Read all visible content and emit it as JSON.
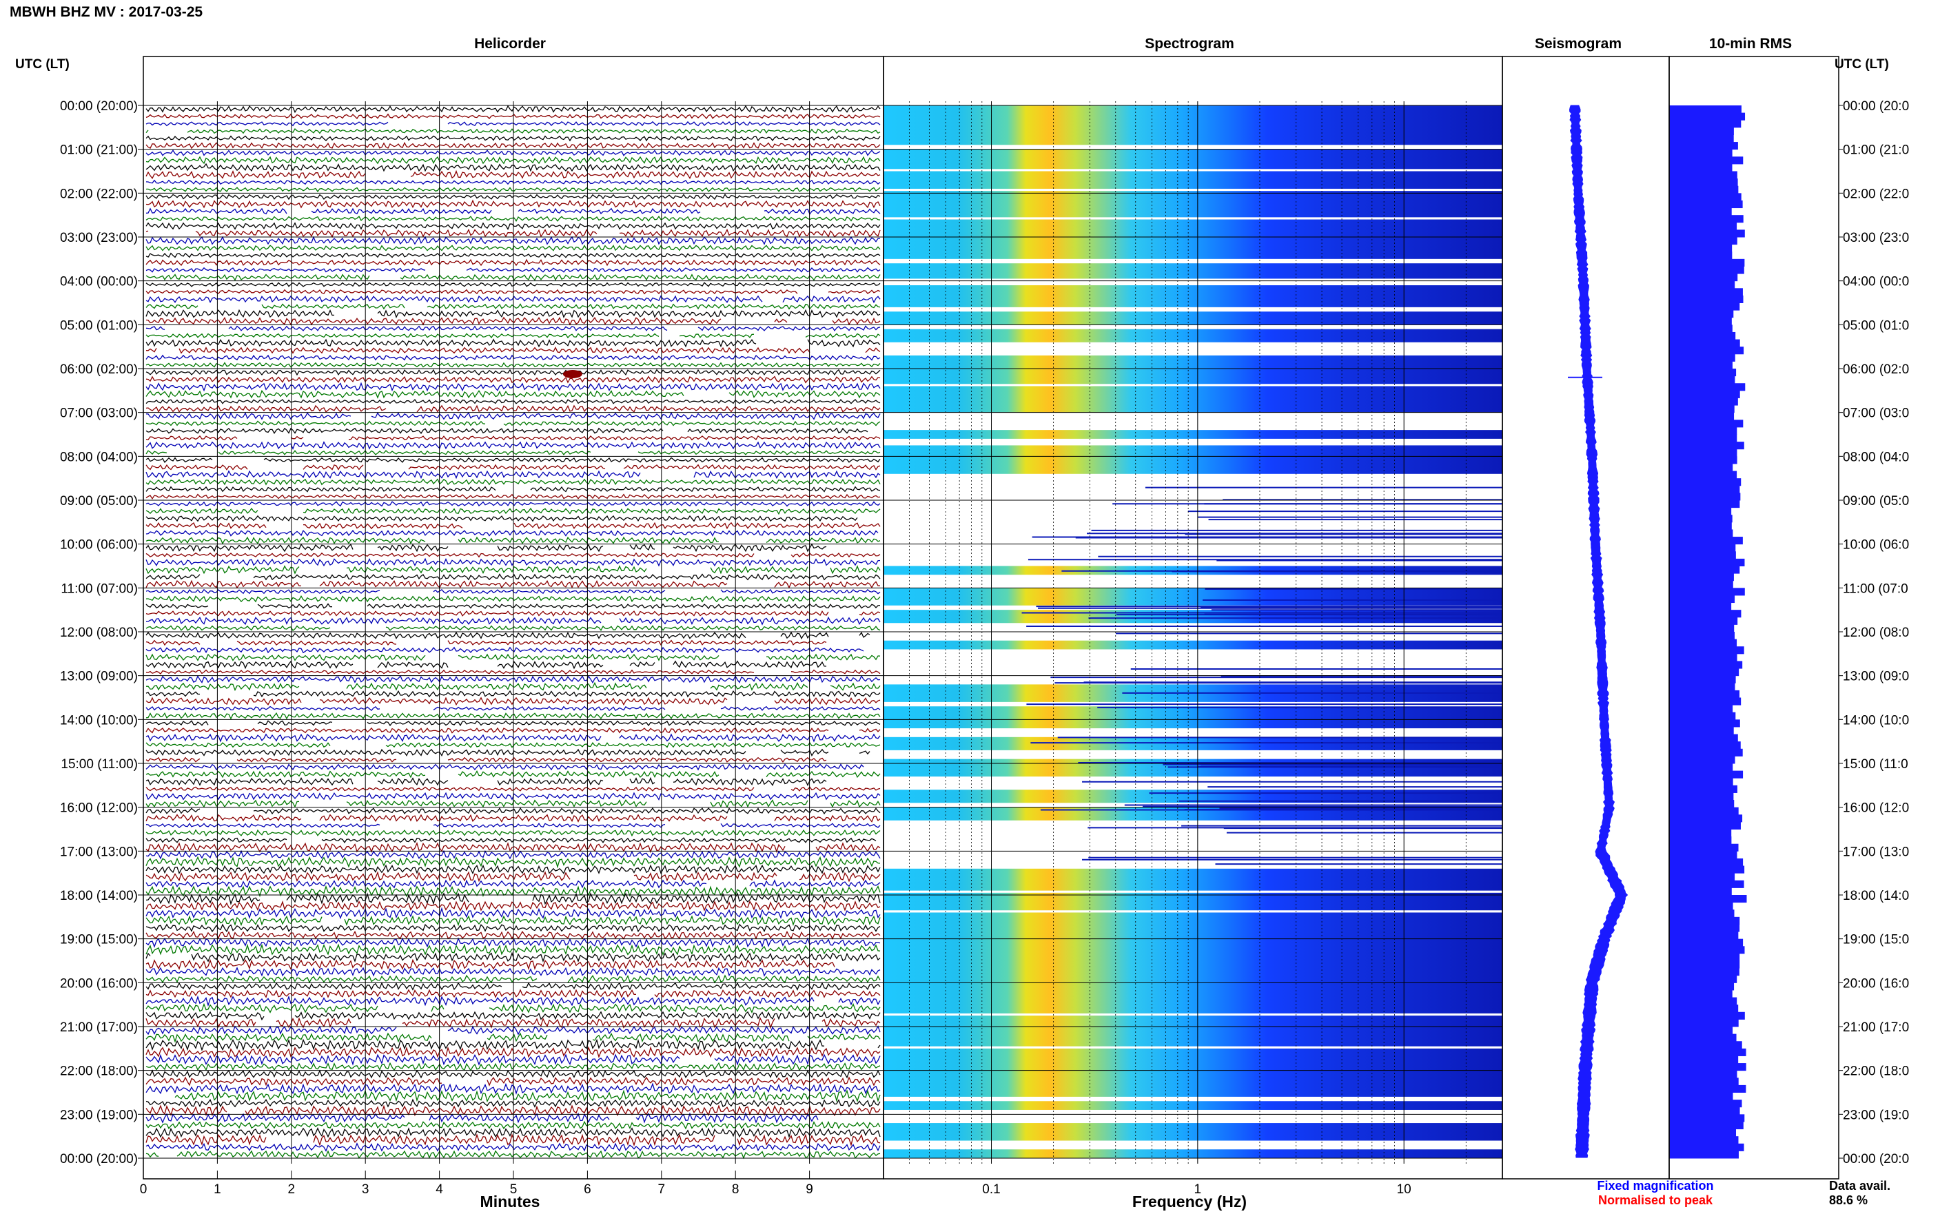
{
  "header": {
    "title": "MBWH BHZ MV : 2017-03-25",
    "utc_label": "UTC (LT)",
    "utc_label_right": "UTC (LT)"
  },
  "panels": {
    "helicorder_title": "Helicorder",
    "spectrogram_title": "Spectrogram",
    "seismogram_title": "Seismogram",
    "rms_title": "10-min RMS"
  },
  "axes": {
    "helicorder_xlabel": "Minutes",
    "spectrogram_xlabel": "Frequency (Hz)",
    "minute_ticks": [
      "0",
      "1",
      "2",
      "3",
      "4",
      "5",
      "6",
      "7",
      "8",
      "9"
    ],
    "freq_ticks": [
      "0.1",
      "1",
      "10"
    ]
  },
  "legend": {
    "fixed": "Fixed magnification",
    "normalised": "Normalised to peak",
    "data_avail_label": "Data avail.",
    "data_avail_value": "88.6 %"
  },
  "colors": {
    "trace_black": "#000000",
    "trace_red": "#8b0000",
    "trace_blue": "#0000b4",
    "trace_green": "#007800",
    "seismogram": "#1a1aff",
    "rms_bar": "#1a1aff",
    "fixed_text": "#0000ff",
    "normalised_text": "#ff0000"
  },
  "chart_data": {
    "type": "heatmap",
    "title": "MBWH BHZ MV : 2017-03-25",
    "time_labels_left": [
      "00:00 (20:00)",
      "01:00 (21:00)",
      "02:00 (22:00)",
      "03:00 (23:00)",
      "04:00 (00:00)",
      "05:00 (01:00)",
      "06:00 (02:00)",
      "07:00 (03:00)",
      "08:00 (04:00)",
      "09:00 (05:00)",
      "10:00 (06:00)",
      "11:00 (07:00)",
      "12:00 (08:00)",
      "13:00 (09:00)",
      "14:00 (10:00)",
      "15:00 (11:00)",
      "16:00 (12:00)",
      "17:00 (13:00)",
      "18:00 (14:00)",
      "19:00 (15:00)",
      "20:00 (16:00)",
      "21:00 (17:00)",
      "22:00 (18:00)",
      "23:00 (19:00)",
      "00:00 (20:00)"
    ],
    "time_labels_right": [
      "00:00 (20:0",
      "01:00 (21:0",
      "02:00 (22:0",
      "03:00 (23:0",
      "04:00 (00:0",
      "05:00 (01:0",
      "06:00 (02:0",
      "07:00 (03:0",
      "08:00 (04:0",
      "09:00 (05:0",
      "10:00 (06:0",
      "11:00 (07:0",
      "12:00 (08:0",
      "13:00 (09:0",
      "14:00 (10:0",
      "15:00 (11:0",
      "16:00 (12:0",
      "17:00 (13:0",
      "18:00 (14:0",
      "19:00 (15:0",
      "20:00 (16:0",
      "21:00 (17:0",
      "22:00 (18:0",
      "23:00 (19:0",
      "00:00 (20:0"
    ],
    "helicorder": {
      "xlim": [
        0,
        10
      ],
      "xlabel": "Minutes",
      "rows_per_hour": 6,
      "trace_color_cycle": [
        "black",
        "red",
        "blue",
        "green"
      ]
    },
    "spectrogram": {
      "x_scale": "log",
      "xlim": [
        0.03,
        30
      ],
      "xlabel": "Frequency (Hz)",
      "peak_band_hz": [
        0.15,
        0.3
      ]
    },
    "seismogram": {
      "baseline_shift_hours": [
        0,
        2,
        4,
        6,
        8,
        10,
        12,
        14,
        16,
        17,
        18,
        19,
        20,
        22,
        24
      ],
      "baseline_shift_rel": [
        0.0,
        0.1,
        0.25,
        0.35,
        0.5,
        0.6,
        0.75,
        0.85,
        1.0,
        0.75,
        1.35,
        0.85,
        0.5,
        0.3,
        0.2
      ]
    },
    "rms": {
      "interval_min": 10,
      "relative_level_range": [
        0.72,
        1.0
      ]
    }
  }
}
